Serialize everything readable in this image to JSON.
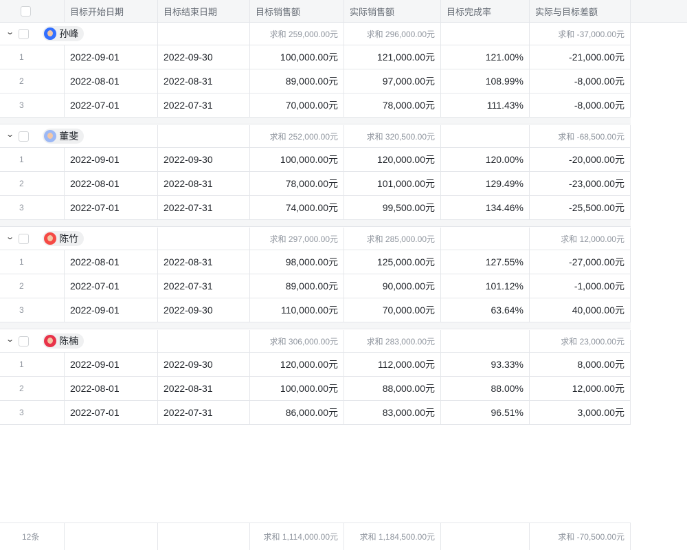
{
  "columns": [
    "",
    "目标开始日期",
    "目标结束日期",
    "目标销售额",
    "实际销售额",
    "目标完成率",
    "实际与目标差额"
  ],
  "groups": [
    {
      "name": "孙峰",
      "avatar_color": "#3370ff",
      "sums": [
        "求和 259,000.00元",
        "求和 296,000.00元",
        "",
        "求和 -37,000.00元"
      ],
      "rows": [
        [
          "1",
          "2022-09-01",
          "2022-09-30",
          "100,000.00元",
          "121,000.00元",
          "121.00%",
          "-21,000.00元"
        ],
        [
          "2",
          "2022-08-01",
          "2022-08-31",
          "89,000.00元",
          "97,000.00元",
          "108.99%",
          "-8,000.00元"
        ],
        [
          "3",
          "2022-07-01",
          "2022-07-31",
          "70,000.00元",
          "78,000.00元",
          "111.43%",
          "-8,000.00元"
        ]
      ]
    },
    {
      "name": "董斐",
      "avatar_color": "#9cb8f5",
      "sums": [
        "求和 252,000.00元",
        "求和 320,500.00元",
        "",
        "求和 -68,500.00元"
      ],
      "rows": [
        [
          "1",
          "2022-09-01",
          "2022-09-30",
          "100,000.00元",
          "120,000.00元",
          "120.00%",
          "-20,000.00元"
        ],
        [
          "2",
          "2022-08-01",
          "2022-08-31",
          "78,000.00元",
          "101,000.00元",
          "129.49%",
          "-23,000.00元"
        ],
        [
          "3",
          "2022-07-01",
          "2022-07-31",
          "74,000.00元",
          "99,500.00元",
          "134.46%",
          "-25,500.00元"
        ]
      ]
    },
    {
      "name": "陈竹",
      "avatar_color": "#f54a45",
      "sums": [
        "求和 297,000.00元",
        "求和 285,000.00元",
        "",
        "求和 12,000.00元"
      ],
      "rows": [
        [
          "1",
          "2022-08-01",
          "2022-08-31",
          "98,000.00元",
          "125,000.00元",
          "127.55%",
          "-27,000.00元"
        ],
        [
          "2",
          "2022-07-01",
          "2022-07-31",
          "89,000.00元",
          "90,000.00元",
          "101.12%",
          "-1,000.00元"
        ],
        [
          "3",
          "2022-09-01",
          "2022-09-30",
          "110,000.00元",
          "70,000.00元",
          "63.64%",
          "40,000.00元"
        ]
      ]
    },
    {
      "name": "陈楠",
      "avatar_color": "#e8334a",
      "sums": [
        "求和 306,000.00元",
        "求和 283,000.00元",
        "",
        "求和 23,000.00元"
      ],
      "rows": [
        [
          "1",
          "2022-09-01",
          "2022-09-30",
          "120,000.00元",
          "112,000.00元",
          "93.33%",
          "8,000.00元"
        ],
        [
          "2",
          "2022-08-01",
          "2022-08-31",
          "100,000.00元",
          "88,000.00元",
          "88.00%",
          "12,000.00元"
        ],
        [
          "3",
          "2022-07-01",
          "2022-07-31",
          "86,000.00元",
          "83,000.00元",
          "96.51%",
          "3,000.00元"
        ]
      ]
    }
  ],
  "footer": {
    "count": "12条",
    "sums": [
      "",
      "",
      "求和 1,114,000.00元",
      "求和 1,184,500.00元",
      "",
      "求和 -70,500.00元"
    ]
  }
}
